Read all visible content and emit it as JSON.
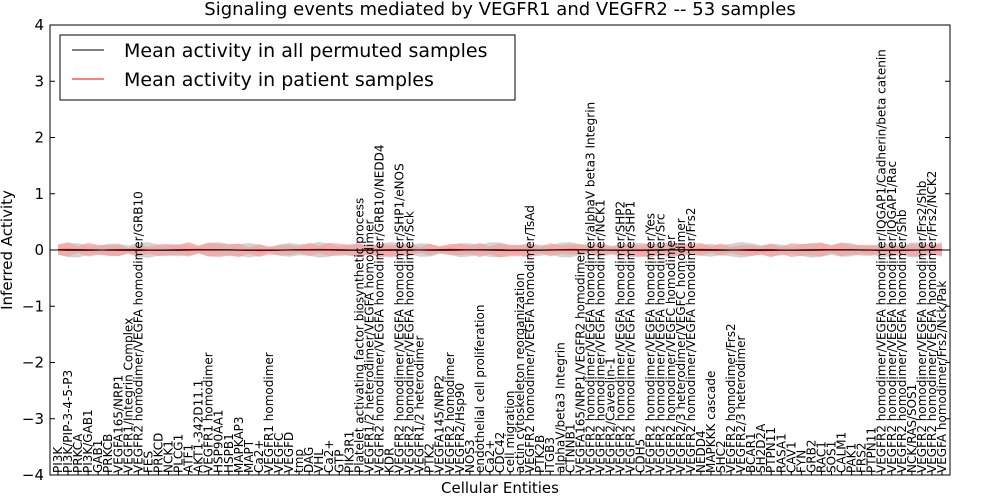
{
  "chart_data": {
    "type": "line",
    "title": "Signaling events mediated by VEGFR1 and VEGFR2 -- 53 samples",
    "xlabel": "Cellular Entities",
    "ylabel": "Inferred Activity",
    "ylim": [
      -4,
      4
    ],
    "yticks": [
      "4",
      "3",
      "2",
      "1",
      "0",
      "−1",
      "−2",
      "−3",
      "−4"
    ],
    "legend": [
      {
        "label": "Mean activity in all permuted samples",
        "color": "#000000"
      },
      {
        "label": "Mean activity in patient samples",
        "color": "#ff0000"
      }
    ],
    "series": [
      {
        "name": "Mean activity in all permuted samples",
        "color": "#000000",
        "fill": "#c0c0c0",
        "values": "flat-near-zero"
      },
      {
        "name": "Mean activity in patient samples",
        "color": "#ff0000",
        "fill": "#f4a0a0",
        "values": "flat-near-zero"
      }
    ],
    "x": [
      "PI3K",
      "PI3K/PIP-3-4-5-P3",
      "PRKCA",
      "PI3K/GAB1",
      "GAB1",
      "PRKCB",
      "VEGFA165/NRP1",
      "VEGFR1/Integrin Complex",
      "VEGFR2 homodimer/VEGFA homodimer/GRB10",
      "FES",
      "PRKCD",
      "NCK1",
      "PLCG1",
      "ATF1",
      "AKT1-342D11.1",
      "VEGFR1 homodimer",
      "HSP90AA1",
      "HSPB1",
      "MAPKAP3",
      "MAPT",
      "Ca2+",
      "VEGFR1 homodimer",
      "VEGFC",
      "VEGFD",
      "tmp",
      "DAG",
      "VHL",
      "Ca2+",
      "GTP",
      "PIK3R1",
      "Platelet activating factor biosynthetic process",
      "VEGFR1/2 heterodimer/VEGFA homodimer",
      "VEGFR2 homodimer/VEGFA homodimer/GRB10/NEDD4",
      "KDR",
      "VEGFR2 homodimer/VEGFA homodimer/SHP1/eNOS",
      "VEGFR2 homodimer/VEGFA homodimer/Sck",
      "VEGFR1/2 heterodimer",
      "PTK2",
      "VEGFA145/NRP2",
      "VEGFR2 homodimer",
      "VEGFR2/Hsp90",
      "NOS3",
      "endothelial cell proliferation",
      "Ca2+",
      "CDC42",
      "cell migration",
      "actin cytoskeleton reorganization",
      "VEGFR2 homodimer/VEGFA homodimer/TsAd",
      "PTK2B",
      "ITGB3",
      "alphaV/beta3 Integrin",
      "CTNNB1",
      "VEGFA165/NRP1/VEGFR2 homodimer",
      "VEGFR2 homodimer/VEGFA homodimer/alphaV beta3 Integrin",
      "VEGFR2 homodimer/VEGFA homodimer/NCK1",
      "VEGFR2/Caveolin-1",
      "VEGFR2 homodimer/VEGFA homodimer/SHP2",
      "VEGFR2 homodimer/VEGFA homodimer/SHP1",
      "CDH5",
      "VEGFR2 homodimer/VEGFA homodimer/Yes",
      "VEGFR2 homodimer/VEGFA homodimer/Src",
      "VEGFR2 homodimer/VEGFC homodimer",
      "VEGFR2/3 heterodimer/VEGFC homodimer",
      "VEGFR2 homodimer/VEGFA homodimer/Frs2",
      "NEDD4",
      "MAPKKK cascade",
      "SHC2",
      "VEGFR2 homodimer/Frs2",
      "VEGFR2/3 heterodimer",
      "BCAR1",
      "SH2D2A",
      "PTPN11",
      "RASA1",
      "CAV1",
      "FYN",
      "GRB2",
      "RAC1",
      "SOS1",
      "CALM1",
      "PAK1",
      "FRS2",
      "PTPN11",
      "VEGFR2 homodimer/VEGFA homodimer/IQGAP1/Cadherin/beta catenin",
      "VEGFR2 homodimer/VEGFA homodimer/IQGAP1/Rac",
      "VEGFR2 homodimer/VEGFA homodimer/Shb",
      "NCK/RAS/SOS1",
      "VEGFR2 homodimer/VEGFA homodimer/Frs2/Shb",
      "VEGFR2 homodimer/VEGFA homodimer/Frs2/NCK2",
      "VEGFA homodimer/Frs2/Nck/Pak"
    ]
  }
}
